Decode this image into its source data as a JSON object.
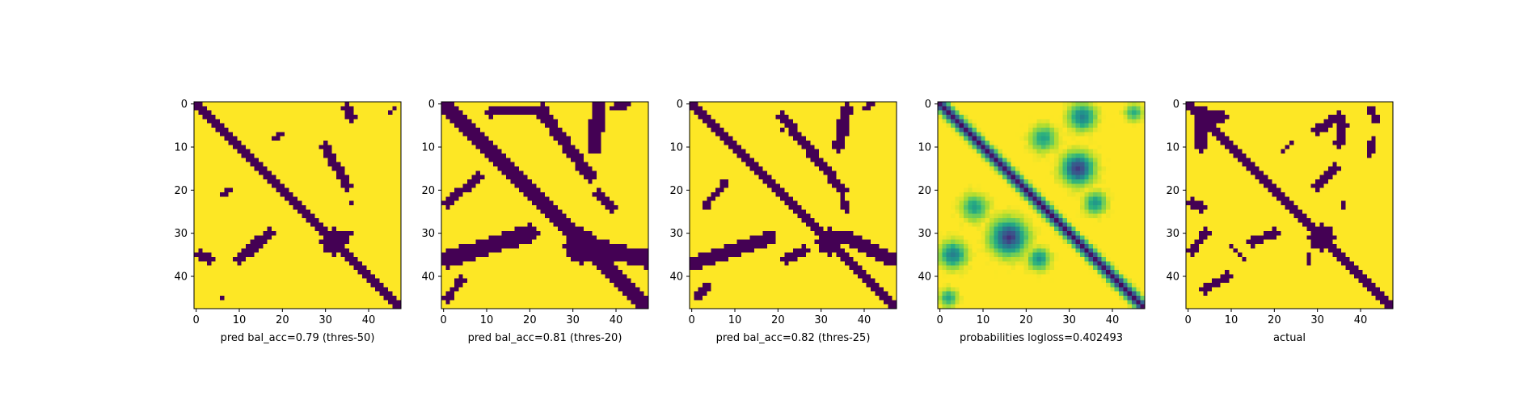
{
  "chart_data": [
    {
      "type": "heatmap",
      "xlabel": "pred bal_acc=0.79 (thres-50)",
      "grid_size": 48,
      "colormap": "viridis-binary",
      "colors": {
        "low": "#440154",
        "high": "#fde725"
      },
      "xticks": [
        "0",
        "10",
        "20",
        "30",
        "40"
      ],
      "yticks": [
        "0",
        "10",
        "20",
        "30",
        "40"
      ],
      "xlim": [
        -0.5,
        47.5
      ],
      "ylim": [
        47.5,
        -0.5
      ],
      "pattern": {
        "main_diagonal": {
          "start": 0,
          "end": 47,
          "half_width": 0.9
        },
        "cross_blob": {
          "center": [
            32,
            32
          ],
          "radius": 3
        },
        "features": [
          {
            "from": [
              1,
              35
            ],
            "to": [
              3,
              36
            ],
            "half_width": 1.2
          },
          {
            "from": [
              10,
              36
            ],
            "to": [
              17,
              30
            ],
            "half_width": 1.2
          },
          {
            "from": [
              6,
              21
            ],
            "to": [
              8,
              20
            ],
            "half_width": 0.6
          },
          {
            "from": [
              30,
              10
            ],
            "to": [
              35,
              19
            ],
            "half_width": 1.1
          },
          {
            "from": [
              35,
              1
            ],
            "to": [
              36,
              3
            ],
            "half_width": 1.1
          },
          {
            "from": [
              20,
              7
            ],
            "to": [
              18,
              8
            ],
            "half_width": 0.6
          },
          {
            "from": [
              36,
              23
            ],
            "to": [
              36,
              23
            ],
            "half_width": 0.7
          },
          {
            "from": [
              36,
              30
            ],
            "to": [
              34,
              31
            ],
            "half_width": 0.8
          },
          {
            "from": [
              45,
              2
            ],
            "to": [
              46,
              1
            ],
            "half_width": 0.7
          },
          {
            "from": [
              6,
              45
            ],
            "to": [
              6,
              45
            ],
            "half_width": 0.6
          }
        ]
      }
    },
    {
      "type": "heatmap",
      "xlabel": "pred bal_acc=0.81 (thres-20)",
      "grid_size": 48,
      "colormap": "viridis-binary",
      "colors": {
        "low": "#440154",
        "high": "#fde725"
      },
      "xticks": [
        "0",
        "10",
        "20",
        "30",
        "40"
      ],
      "yticks": [
        "0",
        "10",
        "20",
        "30",
        "40"
      ],
      "xlim": [
        -0.5,
        47.5
      ],
      "ylim": [
        47.5,
        -0.5
      ],
      "pattern": {
        "main_diagonal": {
          "start": 0,
          "end": 47,
          "half_width": 1.5
        },
        "anti_diagonal": {
          "from": [
            47,
            36
          ],
          "to": [
            34,
            33
          ],
          "half_width": 2.0
        },
        "cross_blob": {
          "center": [
            32,
            33
          ],
          "radius": 4
        },
        "features": [
          {
            "from": [
              1,
              36
            ],
            "to": [
              20,
              30
            ],
            "half_width": 2.0
          },
          {
            "from": [
              1,
              45
            ],
            "to": [
              4,
              41
            ],
            "half_width": 1.0
          },
          {
            "from": [
              23,
              2
            ],
            "to": [
              34,
              17
            ],
            "half_width": 1.4
          },
          {
            "from": [
              36,
              0
            ],
            "to": [
              35,
              10
            ],
            "half_width": 1.6
          },
          {
            "from": [
              39,
              1
            ],
            "to": [
              43,
              0
            ],
            "half_width": 0.8
          },
          {
            "from": [
              1,
              23
            ],
            "to": [
              8,
              17
            ],
            "half_width": 1.0
          },
          {
            "from": [
              11,
              2
            ],
            "to": [
              23,
              1
            ],
            "half_width": 1.0
          },
          {
            "from": [
              36,
              21
            ],
            "to": [
              39,
              24
            ],
            "half_width": 1.2
          }
        ]
      }
    },
    {
      "type": "heatmap",
      "xlabel": "pred bal_acc=0.82 (thres-25)",
      "grid_size": 48,
      "colormap": "viridis-binary",
      "colors": {
        "low": "#440154",
        "high": "#fde725"
      },
      "xticks": [
        "0",
        "10",
        "20",
        "30",
        "40"
      ],
      "yticks": [
        "0",
        "10",
        "20",
        "30",
        "40"
      ],
      "xlim": [
        -0.5,
        47.5
      ],
      "ylim": [
        47.5,
        -0.5
      ],
      "pattern": {
        "main_diagonal": {
          "start": 0,
          "end": 47,
          "half_width": 1.3
        },
        "anti_diagonal": {
          "from": [
            46,
            36
          ],
          "to": [
            36,
            31
          ],
          "half_width": 1.5
        },
        "cross_blob": {
          "center": [
            32,
            32
          ],
          "radius": 3
        },
        "features": [
          {
            "from": [
              1,
              37
            ],
            "to": [
              18,
              31
            ],
            "half_width": 1.6
          },
          {
            "from": [
              1,
              45
            ],
            "to": [
              4,
              42
            ],
            "half_width": 0.8
          },
          {
            "from": [
              21,
              3
            ],
            "to": [
              35,
              20
            ],
            "half_width": 1.1
          },
          {
            "from": [
              36,
              1
            ],
            "to": [
              34,
              10
            ],
            "half_width": 1.4
          },
          {
            "from": [
              40,
              1
            ],
            "to": [
              42,
              0
            ],
            "half_width": 0.7
          },
          {
            "from": [
              3,
              24
            ],
            "to": [
              8,
              18
            ],
            "half_width": 0.8
          },
          {
            "from": [
              21,
              6
            ],
            "to": [
              23,
              4
            ],
            "half_width": 0.7
          },
          {
            "from": [
              22,
              36
            ],
            "to": [
              26,
              34
            ],
            "half_width": 1.0
          },
          {
            "from": [
              35,
              22
            ],
            "to": [
              36,
              25
            ],
            "half_width": 0.9
          }
        ]
      }
    },
    {
      "type": "heatmap",
      "xlabel": "probabilities logloss=0.402493",
      "grid_size": 48,
      "colormap": "viridis",
      "xticks": [
        "0",
        "10",
        "20",
        "30",
        "40"
      ],
      "yticks": [
        "0",
        "10",
        "20",
        "30",
        "40"
      ],
      "xlim": [
        -0.5,
        47.5
      ],
      "ylim": [
        47.5,
        -0.5
      ],
      "pattern": {
        "main_diagonal": {
          "start": 0,
          "end": 47,
          "half_width": 1.0
        },
        "blobs": [
          {
            "center": [
              16,
              31
            ],
            "radius": 4,
            "strength": 0.85
          },
          {
            "center": [
              32,
              15
            ],
            "radius": 3.5,
            "strength": 0.85
          },
          {
            "center": [
              33,
              3
            ],
            "radius": 3,
            "strength": 0.6
          },
          {
            "center": [
              3,
              35
            ],
            "radius": 3,
            "strength": 0.6
          },
          {
            "center": [
              8,
              24
            ],
            "radius": 3,
            "strength": 0.45
          },
          {
            "center": [
              24,
              8
            ],
            "radius": 3,
            "strength": 0.45
          },
          {
            "center": [
              23,
              36
            ],
            "radius": 2.5,
            "strength": 0.5
          },
          {
            "center": [
              36,
              23
            ],
            "radius": 2.5,
            "strength": 0.5
          },
          {
            "center": [
              2,
              45
            ],
            "radius": 2,
            "strength": 0.45
          },
          {
            "center": [
              45,
              2
            ],
            "radius": 2,
            "strength": 0.4
          }
        ]
      }
    },
    {
      "type": "heatmap",
      "xlabel": "actual",
      "grid_size": 48,
      "colormap": "viridis-binary",
      "colors": {
        "low": "#440154",
        "high": "#fde725"
      },
      "xticks": [
        "0",
        "10",
        "20",
        "30",
        "40"
      ],
      "yticks": [
        "0",
        "10",
        "20",
        "30",
        "40"
      ],
      "xlim": [
        -0.5,
        47.5
      ],
      "ylim": [
        47.5,
        -0.5
      ],
      "pattern": {
        "main_diagonal": {
          "start": 0,
          "end": 47,
          "half_width": 1.2
        },
        "cross_blob": {
          "center": [
            31,
            31
          ],
          "radius": 3
        },
        "features": [
          {
            "from": [
              2,
              2
            ],
            "to": [
              8,
              3
            ],
            "half_width": 1.4
          },
          {
            "from": [
              3,
              3
            ],
            "to": [
              3,
              10
            ],
            "half_width": 1.0
          },
          {
            "from": [
              1,
              23
            ],
            "to": [
              3,
              24
            ],
            "half_width": 1.0
          },
          {
            "from": [
              1,
              34
            ],
            "to": [
              4,
              30
            ],
            "half_width": 1.0
          },
          {
            "from": [
              4,
              43
            ],
            "to": [
              9,
              40
            ],
            "half_width": 1.0
          },
          {
            "from": [
              15,
              32
            ],
            "to": [
              20,
              30
            ],
            "half_width": 1.0
          },
          {
            "from": [
              30,
              6
            ],
            "to": [
              35,
              3
            ],
            "half_width": 1.2
          },
          {
            "from": [
              34,
              15
            ],
            "to": [
              30,
              19
            ],
            "half_width": 1.0
          },
          {
            "from": [
              36,
              5
            ],
            "to": [
              35,
              9
            ],
            "half_width": 1.0
          },
          {
            "from": [
              42,
              1
            ],
            "to": [
              44,
              4
            ],
            "half_width": 0.9
          },
          {
            "from": [
              43,
              8
            ],
            "to": [
              42,
              12
            ],
            "half_width": 0.8
          },
          {
            "from": [
              28,
              35
            ],
            "to": [
              28,
              37
            ],
            "half_width": 0.8
          },
          {
            "from": [
              36,
              23
            ],
            "to": [
              36,
              24
            ],
            "half_width": 0.8
          },
          {
            "from": [
              22,
              11
            ],
            "to": [
              24,
              9
            ],
            "half_width": 0.7
          },
          {
            "from": [
              13,
              36
            ],
            "to": [
              10,
              33
            ],
            "half_width": 0.7
          }
        ]
      }
    }
  ]
}
